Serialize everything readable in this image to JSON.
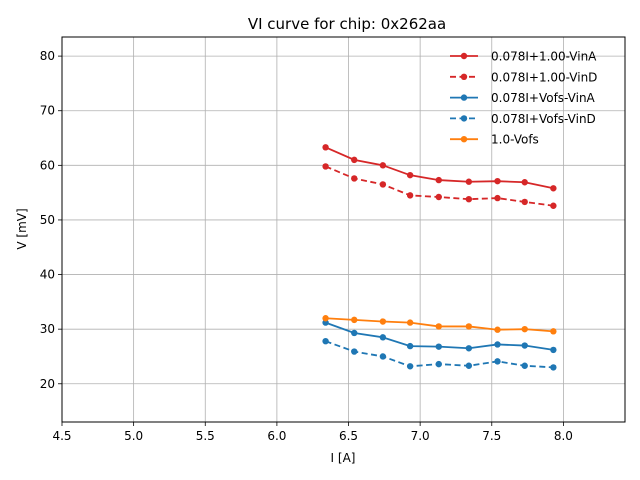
{
  "chart_data": {
    "type": "line",
    "title": "VI curve for chip: 0x262aa",
    "xlabel": "I [A]",
    "ylabel": "V [mV]",
    "xlim": [
      4.5,
      8.43
    ],
    "ylim": [
      13,
      83.5
    ],
    "xticks": [
      "4.5",
      "5.0",
      "5.5",
      "6.0",
      "6.5",
      "7.0",
      "7.5",
      "8.0"
    ],
    "yticks": [
      "20",
      "30",
      "40",
      "50",
      "60",
      "70",
      "80"
    ],
    "xtick_values": [
      4.5,
      5.0,
      5.5,
      6.0,
      6.5,
      7.0,
      7.5,
      8.0
    ],
    "ytick_values": [
      20,
      30,
      40,
      50,
      60,
      70,
      80
    ],
    "grid": true,
    "legend_position": "top-right",
    "x": [
      6.34,
      6.54,
      6.74,
      6.93,
      7.13,
      7.34,
      7.54,
      7.73,
      7.93
    ],
    "series": [
      {
        "name": "0.078I+1.00-VinA",
        "color": "#d62728",
        "dashed": false,
        "values": [
          63.3,
          61.0,
          60.0,
          58.2,
          57.3,
          57.0,
          57.1,
          56.9,
          55.8
        ]
      },
      {
        "name": "0.078I+1.00-VinD",
        "color": "#d62728",
        "dashed": true,
        "values": [
          59.8,
          57.6,
          56.5,
          54.5,
          54.2,
          53.8,
          54.0,
          53.3,
          52.6
        ]
      },
      {
        "name": "0.078I+Vofs-VinA",
        "color": "#1f77b4",
        "dashed": false,
        "values": [
          31.2,
          29.3,
          28.5,
          26.9,
          26.8,
          26.5,
          27.2,
          27.0,
          26.2
        ]
      },
      {
        "name": "0.078I+Vofs-VinD",
        "color": "#1f77b4",
        "dashed": true,
        "values": [
          27.8,
          25.9,
          25.0,
          23.2,
          23.6,
          23.3,
          24.1,
          23.3,
          23.0
        ]
      },
      {
        "name": "1.0-Vofs",
        "color": "#ff7f0e",
        "dashed": false,
        "values": [
          32.0,
          31.7,
          31.4,
          31.2,
          30.5,
          30.5,
          29.9,
          30.0,
          29.6
        ]
      }
    ]
  }
}
